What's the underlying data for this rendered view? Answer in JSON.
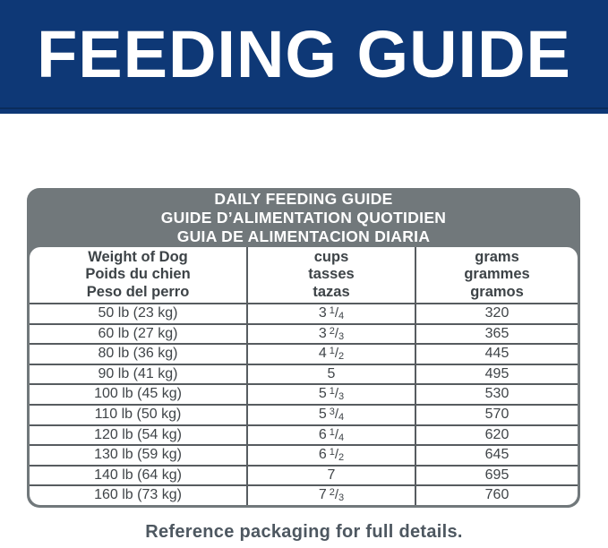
{
  "banner": {
    "title": "FEEDING GUIDE"
  },
  "table": {
    "title_lines": [
      "DAILY FEEDING GUIDE",
      "GUIDE D’ALIMENTATION QUOTIDIEN",
      "GUIA DE ALIMENTACION DIARIA"
    ],
    "columns": [
      {
        "lines": [
          "Weight of Dog",
          "Poids du chien",
          "Peso del perro"
        ]
      },
      {
        "lines": [
          "cups",
          "tasses",
          "tazas"
        ]
      },
      {
        "lines": [
          "grams",
          "grammes",
          "gramos"
        ]
      }
    ],
    "rows": [
      {
        "weight": "50 lb (23 kg)",
        "cups": {
          "whole": "3",
          "num": "1",
          "den": "4"
        },
        "grams": "320"
      },
      {
        "weight": "60 lb (27 kg)",
        "cups": {
          "whole": "3",
          "num": "2",
          "den": "3"
        },
        "grams": "365"
      },
      {
        "weight": "80 lb (36 kg)",
        "cups": {
          "whole": "4",
          "num": "1",
          "den": "2"
        },
        "grams": "445"
      },
      {
        "weight": "90 lb (41 kg)",
        "cups": {
          "whole": "5"
        },
        "grams": "495"
      },
      {
        "weight": "100 lb (45 kg)",
        "cups": {
          "whole": "5",
          "num": "1",
          "den": "3"
        },
        "grams": "530"
      },
      {
        "weight": "110 lb (50 kg)",
        "cups": {
          "whole": "5",
          "num": "3",
          "den": "4"
        },
        "grams": "570"
      },
      {
        "weight": "120 lb (54 kg)",
        "cups": {
          "whole": "6",
          "num": "1",
          "den": "4"
        },
        "grams": "620"
      },
      {
        "weight": "130 lb (59 kg)",
        "cups": {
          "whole": "6",
          "num": "1",
          "den": "2"
        },
        "grams": "645"
      },
      {
        "weight": "140 lb (64 kg)",
        "cups": {
          "whole": "7"
        },
        "grams": "695"
      },
      {
        "weight": "160 lb (73 kg)",
        "cups": {
          "whole": "7",
          "num": "2",
          "den": "3"
        },
        "grams": "760"
      }
    ]
  },
  "footer": {
    "note": "Reference packaging for full details."
  },
  "colors": {
    "banner_navy": "#0e3876",
    "banner_stripe": "#0a2c5c",
    "header_gray": "#71787b",
    "grid_line": "#575c60",
    "text_dark": "#3f4448",
    "footer_text": "#4d5760",
    "white": "#ffffff"
  }
}
